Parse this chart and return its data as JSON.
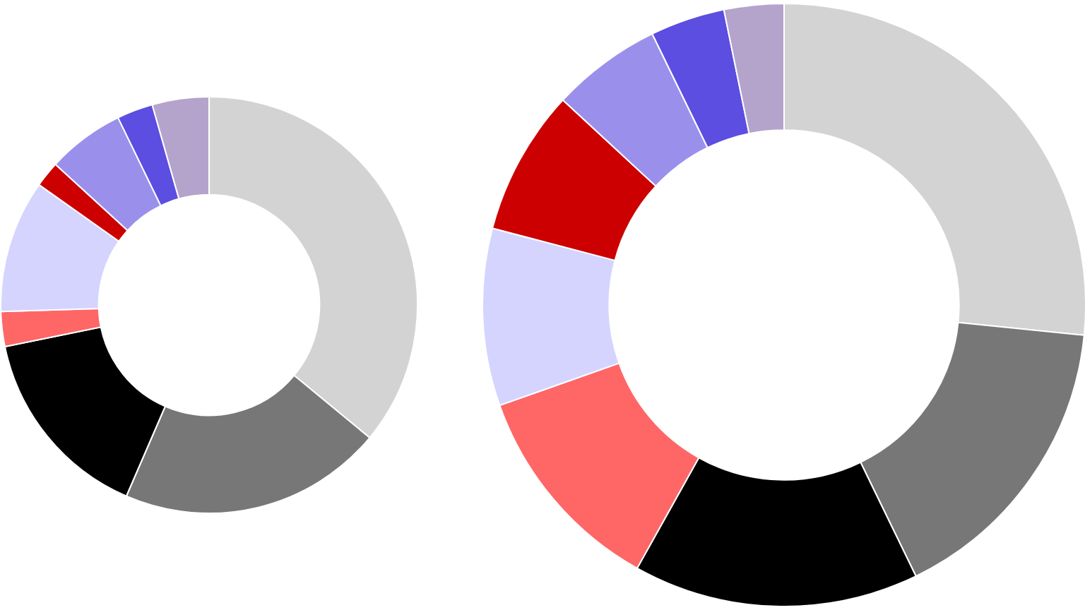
{
  "chart_data": [
    {
      "type": "donut",
      "categories": [
        null,
        null,
        null,
        null,
        null,
        null,
        null,
        null,
        null
      ],
      "values": [
        36,
        20.5,
        15.3,
        2.7,
        10.3,
        2,
        6,
        2.8,
        4.4
      ],
      "colors": [
        "#d3d3d3",
        "#777777",
        "#000000",
        "#ff6666",
        "#d4d4ff",
        "#cc0000",
        "#9a90ec",
        "#5b4ee0",
        "#b4a4cc"
      ],
      "legend": false
    },
    {
      "type": "donut",
      "categories": [
        null,
        null,
        null,
        null,
        null,
        null,
        null,
        null,
        null
      ],
      "values": [
        26.6,
        16.2,
        15.3,
        11.5,
        9.5,
        7.8,
        5.9,
        4,
        3.2
      ],
      "colors": [
        "#d3d3d3",
        "#777777",
        "#000000",
        "#ff6666",
        "#d4d4ff",
        "#cc0000",
        "#9a90ec",
        "#5b4ee0",
        "#b4a4cc"
      ],
      "legend": false
    }
  ]
}
